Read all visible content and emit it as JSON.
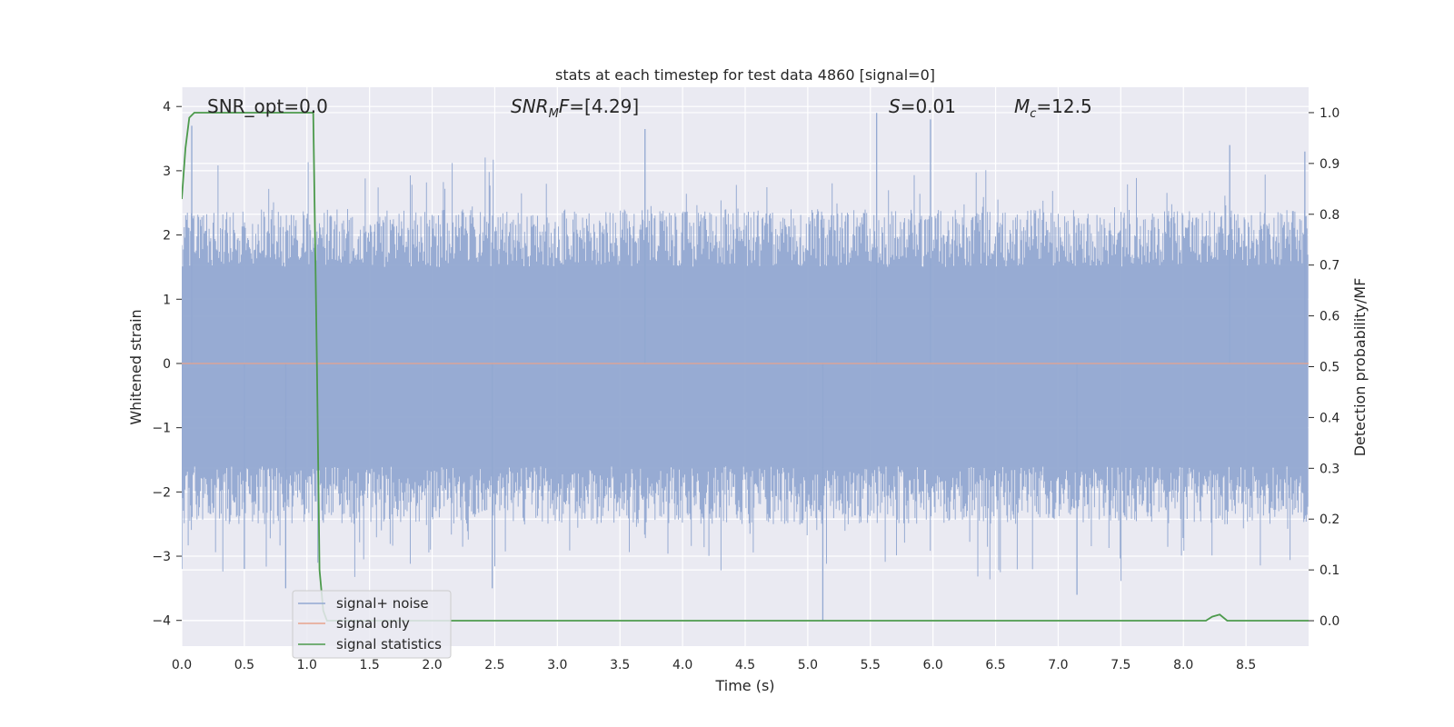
{
  "chart_data": {
    "type": "line",
    "title": "stats at each timestep for test data 4860 [signal=0]",
    "xlabel": "Time (s)",
    "ylabel": "Whitened strain",
    "y2label": "Detection probability/MF",
    "xlim": [
      0.0,
      9.0
    ],
    "ylim": [
      -4.4,
      4.3
    ],
    "y2lim": [
      -0.05,
      1.05
    ],
    "x_ticks": [
      "0.0",
      "0.5",
      "1.0",
      "1.5",
      "2.0",
      "2.5",
      "3.0",
      "3.5",
      "4.0",
      "4.5",
      "5.0",
      "5.5",
      "6.0",
      "6.5",
      "7.0",
      "7.5",
      "8.0",
      "8.5"
    ],
    "y_ticks": [
      "4",
      "3",
      "2",
      "1",
      "0",
      "−1",
      "−2",
      "−3",
      "−4"
    ],
    "y2_ticks": [
      "1.0",
      "0.9",
      "0.8",
      "0.7",
      "0.6",
      "0.5",
      "0.4",
      "0.3",
      "0.2",
      "0.1",
      "0.0"
    ],
    "grid": true,
    "legend_position": "lower-left",
    "annotations": {
      "snr_opt": "SNR_opt=0.0",
      "snr_mf_base": "SNR",
      "snr_mf_sub": "M",
      "snr_mf_rest": "F=[4.29]",
      "s_label": "S",
      "s_value": "=0.01",
      "mc_label": "M",
      "mc_sub": "c",
      "mc_value": "=12.5"
    },
    "series": [
      {
        "name": "signal+ noise",
        "color": "#92a8d1",
        "note": "dense whitened noise, roughly bounded between -4 and 3.9",
        "peaks": [
          {
            "x": 0.0,
            "y": -3.2
          },
          {
            "x": 0.08,
            "y": 3.7
          },
          {
            "x": 0.5,
            "y": -3.2
          },
          {
            "x": 0.83,
            "y": -3.5
          },
          {
            "x": 2.48,
            "y": -3.5
          },
          {
            "x": 3.7,
            "y": 3.65
          },
          {
            "x": 5.12,
            "y": -4.0
          },
          {
            "x": 5.55,
            "y": 3.9
          },
          {
            "x": 5.98,
            "y": 3.8
          },
          {
            "x": 7.15,
            "y": -3.6
          },
          {
            "x": 8.37,
            "y": 3.4
          },
          {
            "x": 8.97,
            "y": 3.3
          }
        ]
      },
      {
        "name": "signal only",
        "color": "#e8a38c",
        "x": [
          0.0,
          9.0
        ],
        "y": [
          0.0,
          0.0
        ]
      },
      {
        "name": "signal statistics",
        "color": "#4c9a4c",
        "axis": "right",
        "x": [
          0.0,
          0.03,
          0.06,
          0.1,
          0.2,
          0.5,
          0.8,
          1.0,
          1.05,
          1.08,
          1.1,
          1.13,
          1.16,
          1.2,
          1.4,
          2.0,
          4.0,
          6.0,
          8.0,
          8.18,
          8.23,
          8.29,
          8.35,
          8.6,
          9.0
        ],
        "y": [
          0.83,
          0.93,
          0.99,
          1.0,
          1.0,
          1.0,
          1.0,
          1.0,
          1.0,
          0.5,
          0.1,
          0.02,
          0.0,
          0.0,
          0.0,
          0.0,
          0.0,
          0.0,
          0.0,
          0.0,
          0.008,
          0.012,
          0.0,
          0.0,
          0.0
        ]
      }
    ]
  }
}
